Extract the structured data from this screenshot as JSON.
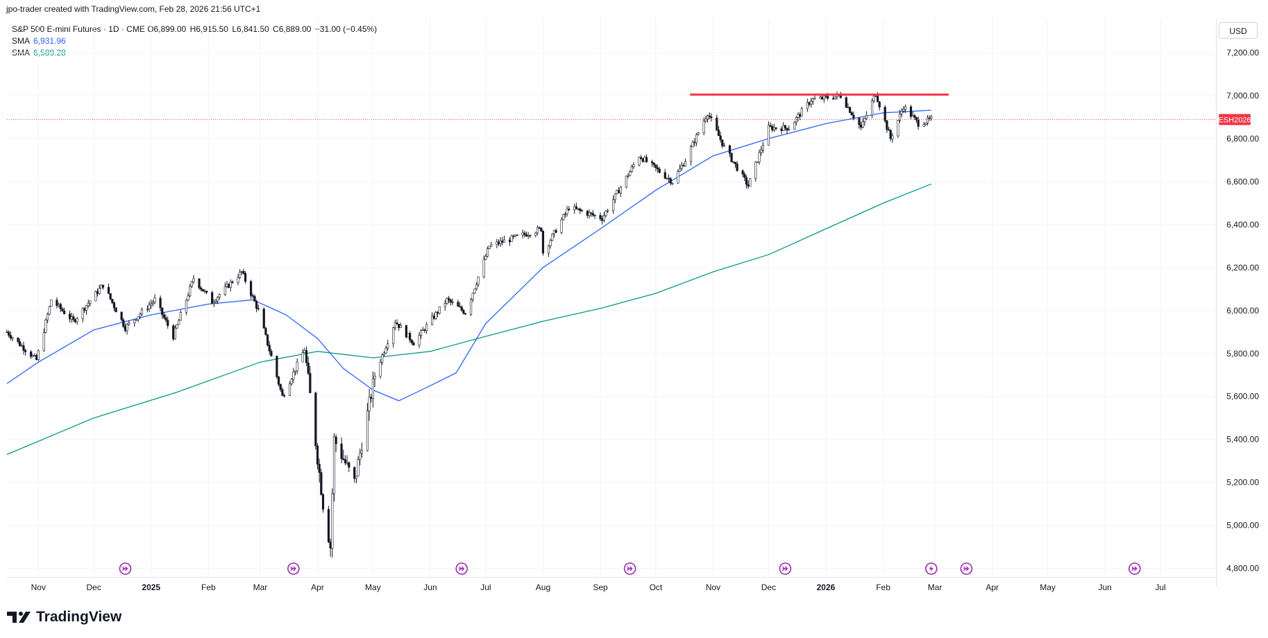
{
  "header": {
    "attribution": "jpo-trader created with TradingView.com, Feb 28, 2026 21:56 UTC+1"
  },
  "legend": {
    "symbol": "S&P 500 E-mini Futures · 1D · CME",
    "open": "O6,899.00",
    "high": "H6,915.50",
    "low": "L6,841.50",
    "close": "C6,889.00",
    "change": "−31.00 (−0.45%)",
    "sma1_label": "SMA",
    "sma1_value": "6,931.96",
    "sma2_label": "SMA",
    "sma2_value": "6,589.28"
  },
  "currency": "USD",
  "brand": "TradingView",
  "colors": {
    "up": "#089981",
    "down": "#f23645",
    "candle_body_up": "#ffffff",
    "candle_body_down": "#131722",
    "sma1": "#2962ff",
    "sma2": "#089981",
    "resistance": "#f23645",
    "price_tag": "#f23645",
    "grid": "#f0f3fa"
  },
  "chart_data": {
    "type": "line",
    "title": "",
    "xlabel": "",
    "ylabel": "",
    "ylim": [
      4760,
      7400
    ],
    "grid": true,
    "y_ticks": [
      "7,200.00",
      "7,000.00",
      "6,800.00",
      "6,600.00",
      "6,400.00",
      "6,200.00",
      "6,000.00",
      "5,800.00",
      "5,600.00",
      "5,400.00",
      "5,200.00",
      "5,000.00",
      "4,800.00"
    ],
    "x_ticks": [
      "Nov",
      "Dec",
      "2025",
      "Feb",
      "Mar",
      "Apr",
      "May",
      "Jun",
      "Jul",
      "Aug",
      "Sep",
      "Oct",
      "Nov",
      "Dec",
      "2026",
      "Feb",
      "Mar",
      "Apr",
      "May",
      "Jun",
      "Jul"
    ],
    "x_range": [
      "2024-10-15",
      "2026-07-31"
    ],
    "price_series": {
      "name": "ESH2026",
      "note_style": "candlestick",
      "points": [
        [
          "2024-10-15",
          5900
        ],
        [
          "2024-10-31",
          5770
        ],
        [
          "2024-11-08",
          6050
        ],
        [
          "2024-11-20",
          5950
        ],
        [
          "2024-12-06",
          6120
        ],
        [
          "2024-12-18",
          5920
        ],
        [
          "2025-01-03",
          6050
        ],
        [
          "2025-01-13",
          5880
        ],
        [
          "2025-01-24",
          6150
        ],
        [
          "2025-02-03",
          6040
        ],
        [
          "2025-02-19",
          6180
        ],
        [
          "2025-02-28",
          6000
        ],
        [
          "2025-03-13",
          5600
        ],
        [
          "2025-03-25",
          5820
        ],
        [
          "2025-04-04",
          5100
        ],
        [
          "2025-04-08",
          4900
        ],
        [
          "2025-04-10",
          5400
        ],
        [
          "2025-04-21",
          5200
        ],
        [
          "2025-05-02",
          5700
        ],
        [
          "2025-05-13",
          5950
        ],
        [
          "2025-05-23",
          5850
        ],
        [
          "2025-06-10",
          6050
        ],
        [
          "2025-06-20",
          5990
        ],
        [
          "2025-07-03",
          6300
        ],
        [
          "2025-07-31",
          6380
        ],
        [
          "2025-08-01",
          6270
        ],
        [
          "2025-08-15",
          6480
        ],
        [
          "2025-09-02",
          6430
        ],
        [
          "2025-09-22",
          6720
        ],
        [
          "2025-10-10",
          6600
        ],
        [
          "2025-10-17",
          6700
        ],
        [
          "2025-10-29",
          6920
        ],
        [
          "2025-11-07",
          6760
        ],
        [
          "2025-11-20",
          6580
        ],
        [
          "2025-12-01",
          6850
        ],
        [
          "2025-12-12",
          6850
        ],
        [
          "2025-12-24",
          6980
        ],
        [
          "2026-01-09",
          7000
        ],
        [
          "2026-01-20",
          6850
        ],
        [
          "2026-01-28",
          7010
        ],
        [
          "2026-02-05",
          6800
        ],
        [
          "2026-02-12",
          6950
        ],
        [
          "2026-02-20",
          6870
        ],
        [
          "2026-02-27",
          6889
        ]
      ]
    },
    "series": [
      {
        "name": "SMA",
        "points": [
          [
            "2024-10-15",
            5660
          ],
          [
            "2024-11-01",
            5760
          ],
          [
            "2024-12-01",
            5910
          ],
          [
            "2025-01-01",
            5980
          ],
          [
            "2025-02-01",
            6030
          ],
          [
            "2025-02-25",
            6050
          ],
          [
            "2025-03-15",
            5980
          ],
          [
            "2025-04-01",
            5870
          ],
          [
            "2025-04-15",
            5730
          ],
          [
            "2025-05-01",
            5630
          ],
          [
            "2025-05-15",
            5580
          ],
          [
            "2025-06-01",
            5650
          ],
          [
            "2025-06-15",
            5710
          ],
          [
            "2025-07-01",
            5940
          ],
          [
            "2025-08-01",
            6200
          ],
          [
            "2025-09-01",
            6380
          ],
          [
            "2025-10-01",
            6560
          ],
          [
            "2025-11-01",
            6720
          ],
          [
            "2025-12-01",
            6800
          ],
          [
            "2026-01-01",
            6870
          ],
          [
            "2026-02-01",
            6920
          ],
          [
            "2026-02-27",
            6932
          ]
        ]
      },
      {
        "name": "SMA",
        "points": [
          [
            "2024-10-15",
            5330
          ],
          [
            "2024-12-01",
            5500
          ],
          [
            "2025-01-15",
            5620
          ],
          [
            "2025-03-01",
            5760
          ],
          [
            "2025-04-01",
            5810
          ],
          [
            "2025-05-01",
            5780
          ],
          [
            "2025-06-01",
            5810
          ],
          [
            "2025-07-01",
            5880
          ],
          [
            "2025-08-01",
            5950
          ],
          [
            "2025-09-01",
            6010
          ],
          [
            "2025-10-01",
            6080
          ],
          [
            "2025-11-01",
            6180
          ],
          [
            "2025-12-01",
            6260
          ],
          [
            "2026-01-01",
            6380
          ],
          [
            "2026-02-01",
            6500
          ],
          [
            "2026-02-27",
            6589
          ]
        ]
      }
    ],
    "resistance_line": {
      "y": 7005,
      "from": "2025-10-20",
      "to": "2026-03-08"
    },
    "last_price_line": {
      "y": 6889,
      "label": "ESH2026"
    },
    "event_markers": [
      "2024-12-18",
      "2025-03-19",
      "2025-06-18",
      "2025-09-17",
      "2025-12-10",
      "2026-02-27",
      "2026-03-18",
      "2026-06-17"
    ]
  }
}
